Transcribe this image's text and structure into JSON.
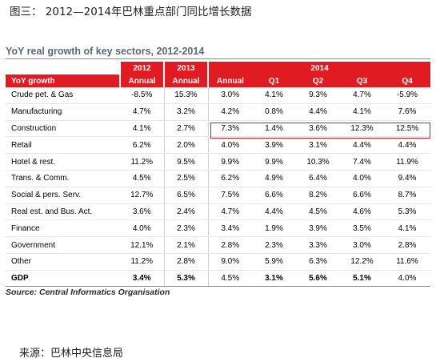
{
  "figure_title": "图三： 2012—2014年巴林重点部门同比增长数据",
  "table_title": "YoY real growth of key sectors, 2012-2014",
  "header": {
    "years": [
      "2012",
      "2013",
      "2014"
    ],
    "row_label": "YoY growth",
    "sub": [
      "Annual",
      "Annual",
      "Annual",
      "Q1",
      "Q2",
      "Q3",
      "Q4"
    ]
  },
  "rows": [
    {
      "label": "Crude pet. & Gas",
      "v": [
        "-8.5%",
        "15.3%",
        "3.0%",
        "4.1%",
        "9.3%",
        "4.7%",
        "-5.9%"
      ]
    },
    {
      "label": "Manufacturing",
      "v": [
        "4.7%",
        "3.2%",
        "4.2%",
        "0.8%",
        "4.4%",
        "4.1%",
        "7.6%"
      ]
    },
    {
      "label": "Construction",
      "v": [
        "4.1%",
        "2.7%",
        "7.3%",
        "1.4%",
        "3.6%",
        "12.3%",
        "12.5%"
      ]
    },
    {
      "label": "Retail",
      "v": [
        "6.2%",
        "2.0%",
        "4.0%",
        "3.9%",
        "3.1%",
        "4.4%",
        "4.4%"
      ]
    },
    {
      "label": "Hotel & rest.",
      "v": [
        "11.2%",
        "9.5%",
        "9.9%",
        "9.9%",
        "10.3%",
        "7.4%",
        "11.9%"
      ]
    },
    {
      "label": "Trans. & Comm.",
      "v": [
        "4.5%",
        "2.5%",
        "6.2%",
        "4.9%",
        "6.4%",
        "4.0%",
        "9.4%"
      ]
    },
    {
      "label": "Social & pers. Serv.",
      "v": [
        "12.7%",
        "6.5%",
        "7.5%",
        "6.6%",
        "8.2%",
        "6.6%",
        "8.7%"
      ]
    },
    {
      "label": "Real est. and Bus. Act.",
      "v": [
        "3.6%",
        "2.4%",
        "4.7%",
        "4.4%",
        "4.5%",
        "4.6%",
        "5.3%"
      ]
    },
    {
      "label": "Finance",
      "v": [
        "4.0%",
        "2.3%",
        "3.4%",
        "1.9%",
        "3.9%",
        "3.5%",
        "4.1%"
      ]
    },
    {
      "label": "Government",
      "v": [
        "12.1%",
        "2.1%",
        "2.8%",
        "2.3%",
        "3.3%",
        "3.0%",
        "2.8%"
      ]
    },
    {
      "label": "Other",
      "v": [
        "11.2%",
        "2.8%",
        "9.0%",
        "5.9%",
        "6.3%",
        "12.2%",
        "11.6%"
      ]
    },
    {
      "label": "GDP",
      "v": [
        "3.4%",
        "5.3%",
        "4.5%",
        "3.1%",
        "5.6%",
        "5.1%",
        "4.0%"
      ]
    }
  ],
  "table_source": "Source: Central Informatics Organisation",
  "figure_source": "来源：巴林中央信息局",
  "colors": {
    "header_red": "#e11b22",
    "highlight_border": "#c81e1e",
    "title_gray": "#5b6a73"
  }
}
